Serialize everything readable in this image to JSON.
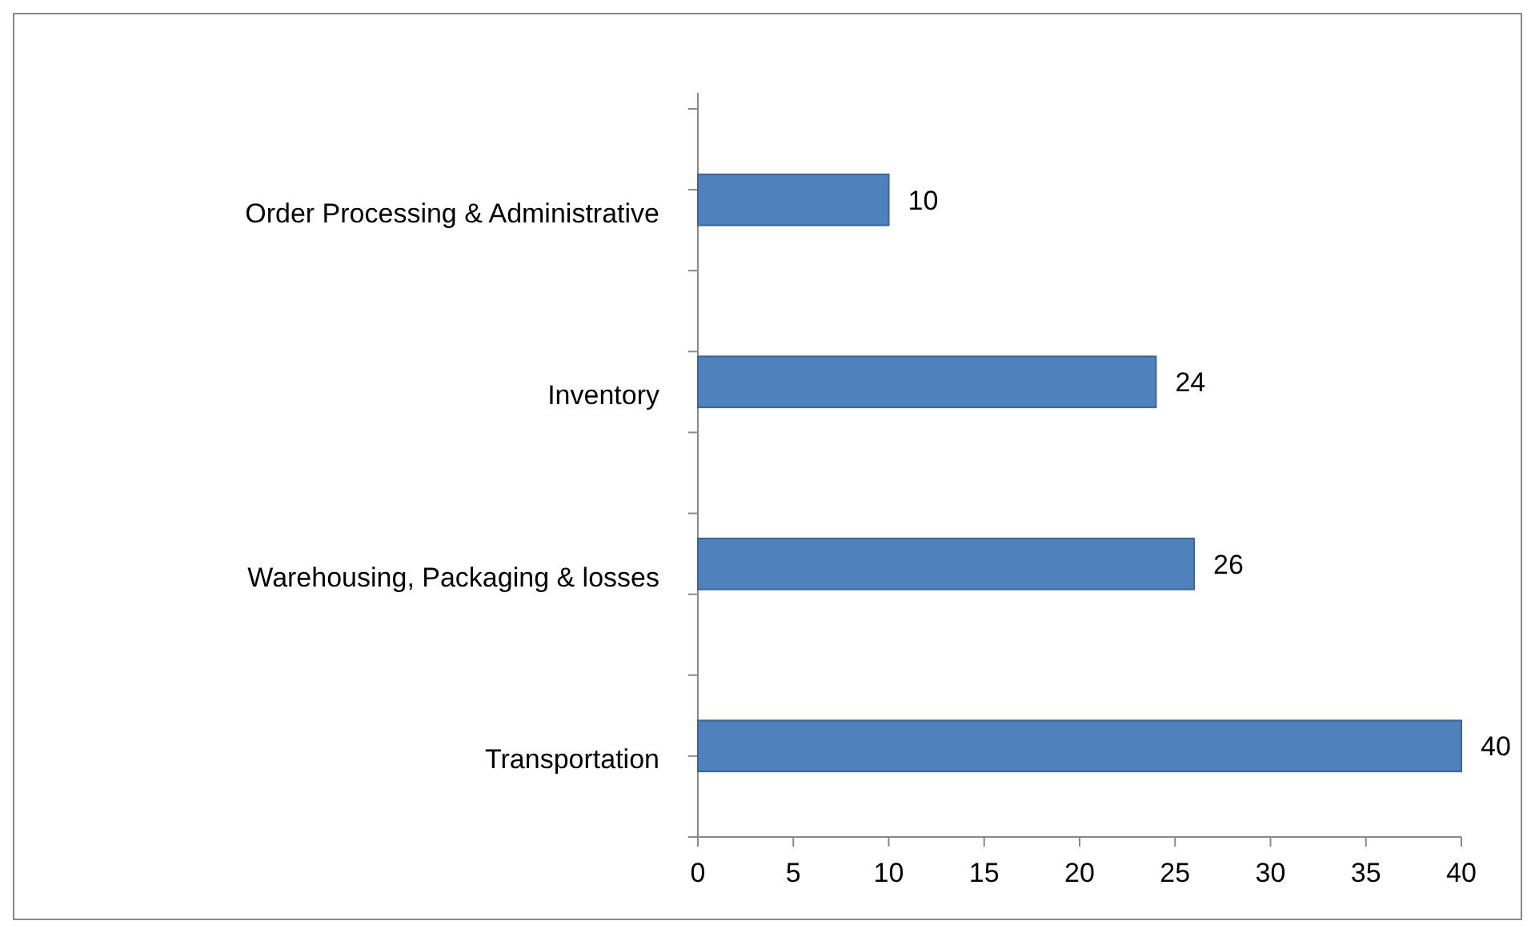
{
  "chart_data": {
    "type": "bar",
    "orientation": "horizontal",
    "categories": [
      "Order Processing & Administrative",
      "Inventory",
      "Warehousing, Packaging & losses",
      "Transportation"
    ],
    "values": [
      10,
      24,
      26,
      40
    ],
    "color": "#4f81bd",
    "xlim": [
      0,
      40
    ],
    "xticks": [
      0,
      5,
      10,
      15,
      20,
      25,
      30,
      35,
      40
    ],
    "data_labels": true,
    "grid": false
  }
}
